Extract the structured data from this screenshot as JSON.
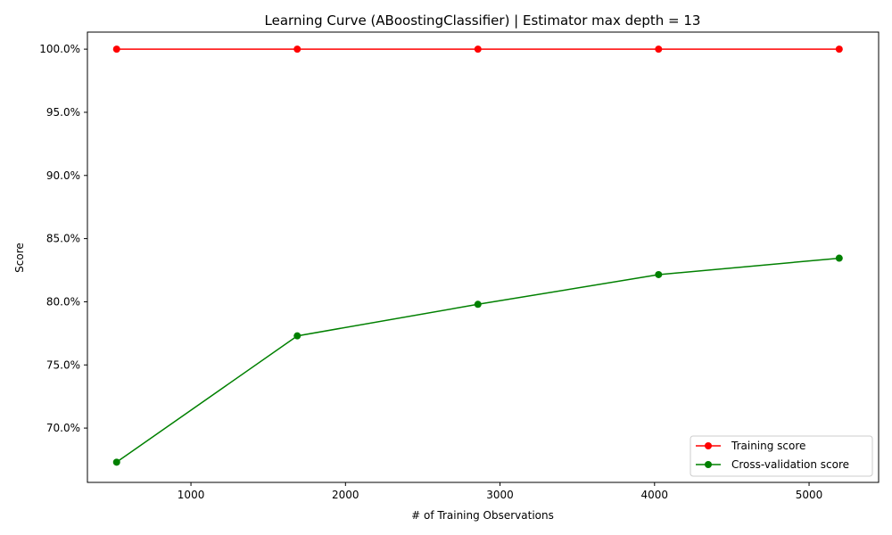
{
  "chart_data": {
    "type": "line",
    "title": "Learning Curve (ABoostingClassifier) | Estimator  max depth = 13",
    "xlabel": "# of Training Observations",
    "ylabel": "Score",
    "x": [
      519,
      1688,
      2857,
      4026,
      5195
    ],
    "x_ticks": [
      1000,
      2000,
      3000,
      4000,
      5000
    ],
    "x_tick_labels": [
      "1000",
      "2000",
      "3000",
      "4000",
      "5000"
    ],
    "y_ticks": [
      0.7,
      0.75,
      0.8,
      0.85,
      0.9,
      0.95,
      1.0
    ],
    "y_tick_labels": [
      "70.0%",
      "75.0%",
      "80.0%",
      "85.0%",
      "90.0%",
      "95.0%",
      "100.0%"
    ],
    "xlim": [
      330,
      5450
    ],
    "ylim": [
      0.657,
      1.0135
    ],
    "grid": false,
    "legend_position": "lower-right",
    "series": [
      {
        "name": "Training score",
        "color": "#ff0000",
        "values": [
          1.0,
          1.0,
          1.0,
          1.0,
          1.0
        ]
      },
      {
        "name": "Cross-validation score",
        "color": "#008000",
        "values": [
          0.673,
          0.773,
          0.798,
          0.8215,
          0.8345
        ]
      }
    ]
  }
}
